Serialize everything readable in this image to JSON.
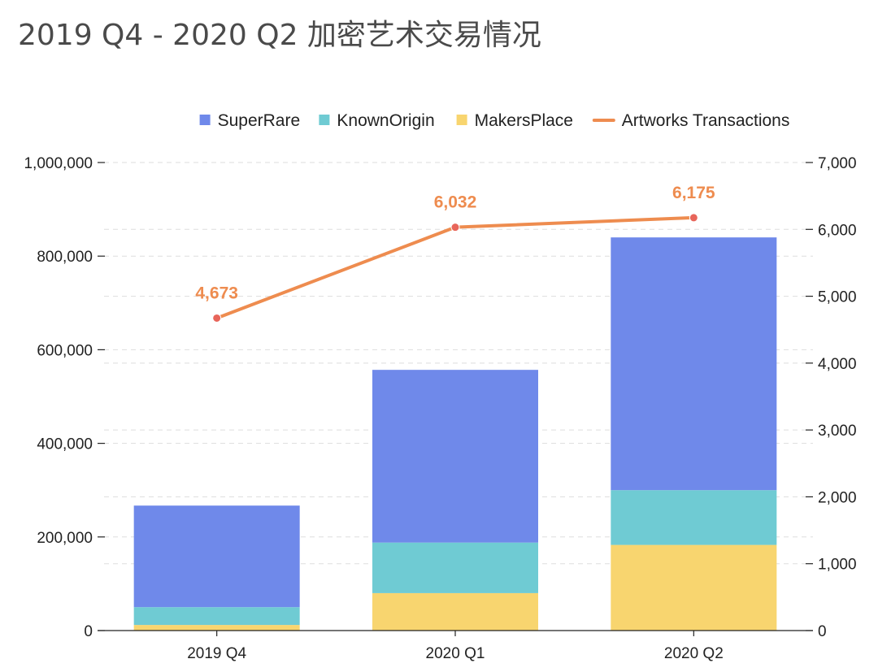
{
  "chart_data": {
    "type": "bar",
    "stacked": true,
    "title": "2019 Q4 - 2020 Q2 加密艺术交易情况",
    "categories": [
      "2019 Q4",
      "2020 Q1",
      "2020 Q2"
    ],
    "series": [
      {
        "name": "MakersPlace",
        "type": "bar",
        "axis": "left",
        "color": "#f8d56f",
        "values": [
          12000,
          80000,
          183000
        ]
      },
      {
        "name": "KnownOrigin",
        "type": "bar",
        "axis": "left",
        "color": "#6fcbd3",
        "values": [
          38000,
          108000,
          117000
        ]
      },
      {
        "name": "SuperRare",
        "type": "bar",
        "axis": "left",
        "color": "#6f89ea",
        "values": [
          217000,
          369000,
          540000
        ]
      },
      {
        "name": "Artworks Transactions",
        "type": "line",
        "axis": "right",
        "color": "#ee8c4f",
        "marker_color": "#e8655a",
        "values": [
          4673,
          6032,
          6175
        ],
        "labels": [
          "4,673",
          "6,032",
          "6,175"
        ]
      }
    ],
    "legend_order": [
      "SuperRare",
      "KnownOrigin",
      "MakersPlace",
      "Artworks Transactions"
    ],
    "legend_position": "top-right",
    "y_left": {
      "range": [
        0,
        1000000
      ],
      "ticks": [
        0,
        200000,
        400000,
        600000,
        800000,
        1000000
      ],
      "tick_labels": [
        "0",
        "200,000",
        "400,000",
        "600,000",
        "800,000",
        "1,000,000"
      ]
    },
    "y_right": {
      "range": [
        0,
        7000
      ],
      "ticks": [
        0,
        1000,
        2000,
        3000,
        4000,
        5000,
        6000,
        7000
      ],
      "tick_labels": [
        "0",
        "1,000",
        "2,000",
        "3,000",
        "4,000",
        "5,000",
        "6,000",
        "7,000"
      ]
    },
    "grid": true,
    "grid_style": "dashed"
  }
}
